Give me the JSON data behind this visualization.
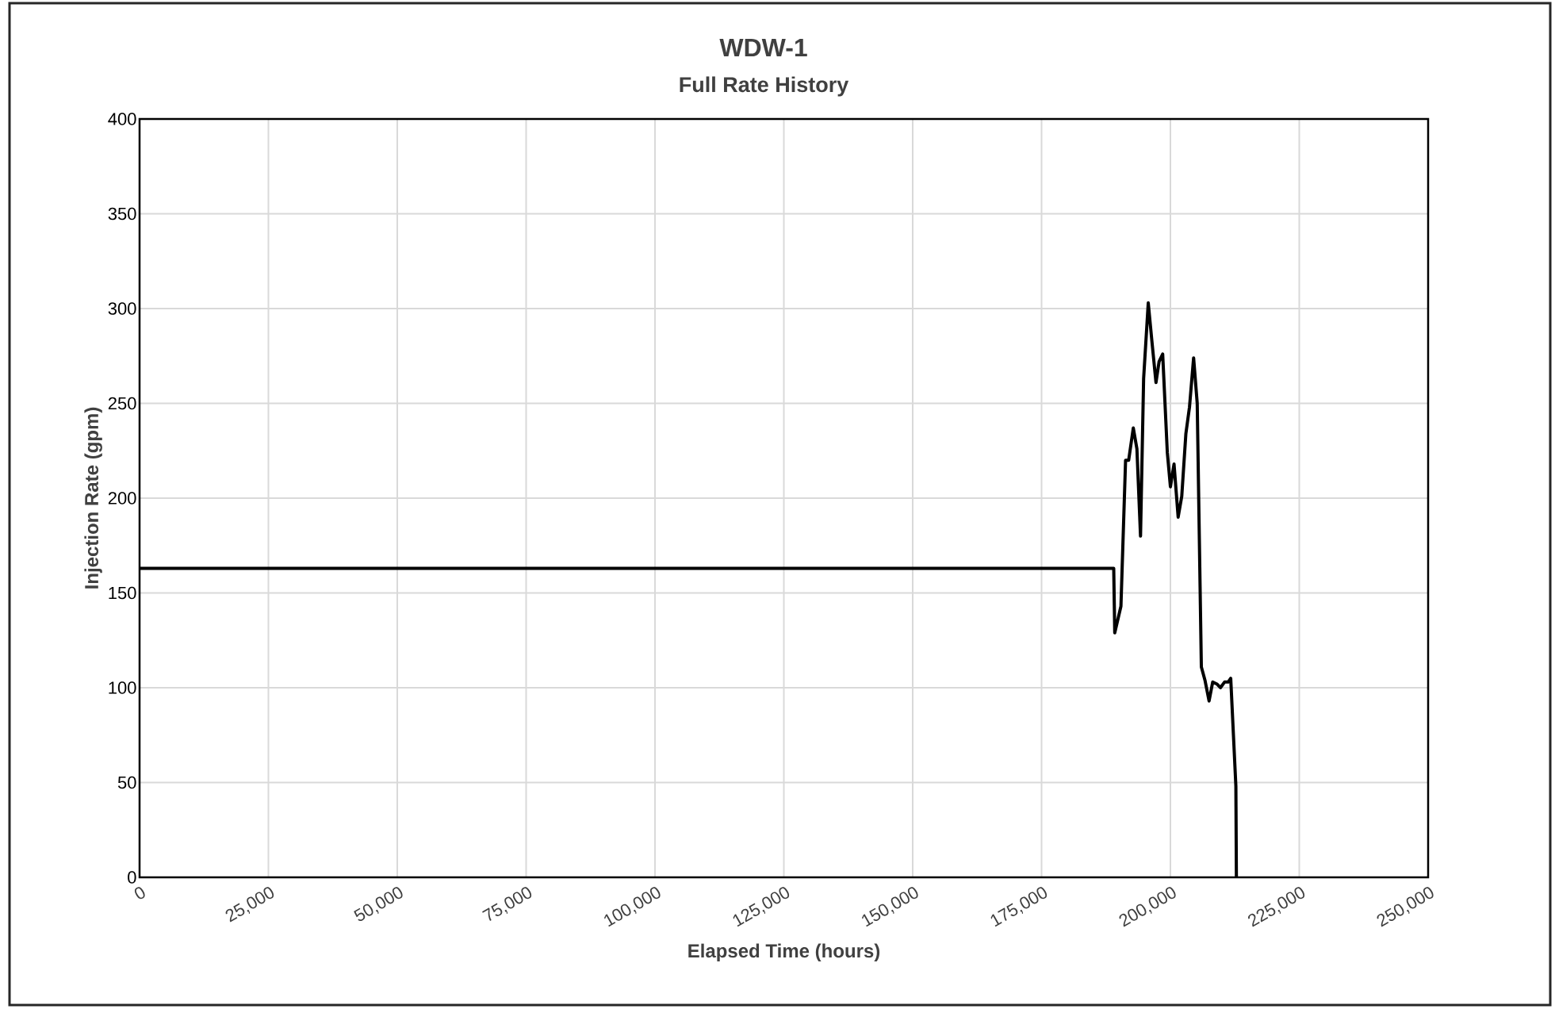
{
  "chart_data": {
    "type": "line",
    "title": "WDW-1",
    "subtitle": "Full Rate History",
    "xlabel": "Elapsed Time (hours)",
    "ylabel": "Injection Rate (gpm)",
    "x": [
      0,
      189000,
      189200,
      190400,
      191300,
      191900,
      192800,
      193500,
      194200,
      194800,
      195700,
      196400,
      197200,
      197800,
      198500,
      199400,
      200000,
      200700,
      201500,
      202200,
      203000,
      203700,
      204500,
      205200,
      206000,
      206700,
      207500,
      208200,
      209000,
      209700,
      210500,
      211200,
      211700,
      212700,
      212800
    ],
    "series": [
      {
        "color": "#000000",
        "values": [
          163,
          163,
          129,
          143,
          220,
          220,
          237,
          226,
          180,
          263,
          303,
          283,
          261,
          272,
          276,
          224,
          206,
          218,
          190,
          201,
          234,
          248,
          274,
          250,
          111,
          104,
          93,
          103,
          102,
          100,
          103,
          103,
          105,
          48,
          0
        ]
      }
    ],
    "xlim": [
      0,
      250000
    ],
    "ylim": [
      0,
      400
    ],
    "xticks": [
      0,
      {
        "value": 25000,
        "label": "25,000"
      },
      {
        "value": 50000,
        "label": "50,000"
      },
      {
        "value": 75000,
        "label": "75,000"
      },
      {
        "value": 100000,
        "label": "100,000"
      },
      {
        "value": 125000,
        "label": "125,000"
      },
      {
        "value": 150000,
        "label": "150,000"
      },
      {
        "value": 175000,
        "label": "175,000"
      },
      {
        "value": 200000,
        "label": "200,000"
      },
      {
        "value": 225000,
        "label": "225,000"
      },
      {
        "value": 250000,
        "label": "250,000"
      }
    ],
    "yticks": [
      0,
      50,
      100,
      150,
      200,
      250,
      300,
      350,
      400
    ],
    "grid": true,
    "marker": "none",
    "line_style": "solid"
  }
}
